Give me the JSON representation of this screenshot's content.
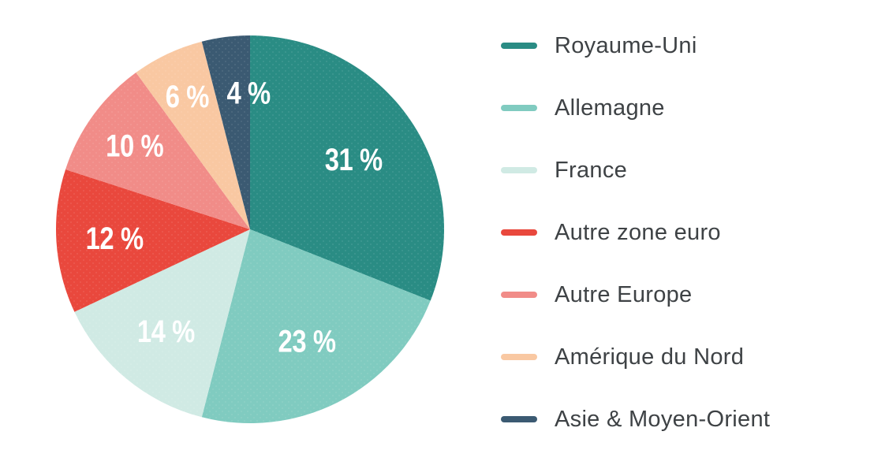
{
  "chart_data": {
    "type": "pie",
    "title": "",
    "direction": "clockwise",
    "start_angle_deg": 0,
    "legend_position": "right",
    "background": "#FFFFFF",
    "value_label_color": "#FFFFFF",
    "legend_text_color": "#3E4245",
    "slices": [
      {
        "label": "Royaume-Uni",
        "value": 31,
        "pct_label": "31 %",
        "color": "#2A8C84"
      },
      {
        "label": "Allemagne",
        "value": 23,
        "pct_label": "23 %",
        "color": "#80CBC0"
      },
      {
        "label": "France",
        "value": 14,
        "pct_label": "14 %",
        "color": "#D0EAE4"
      },
      {
        "label": "Autre zone euro",
        "value": 12,
        "pct_label": "12 %",
        "color": "#E9483D"
      },
      {
        "label": "Autre Europe",
        "value": 10,
        "pct_label": "10 %",
        "color": "#F18C88"
      },
      {
        "label": "Amérique du Nord",
        "value": 6,
        "pct_label": "6 %",
        "color": "#F9C8A2"
      },
      {
        "label": "Asie & Moyen-Orient",
        "value": 4,
        "pct_label": "4 %",
        "color": "#3B5A72"
      }
    ],
    "layout": {
      "center": [
        317,
        291
      ],
      "radius": 246,
      "label_radius_frac": [
        0.645,
        0.645,
        0.68,
        0.7,
        0.735,
        0.76,
        0.71
      ],
      "label_dx": [
        0,
        0,
        0,
        0,
        0,
        0,
        20
      ],
      "legend_item_step": 79
    }
  }
}
